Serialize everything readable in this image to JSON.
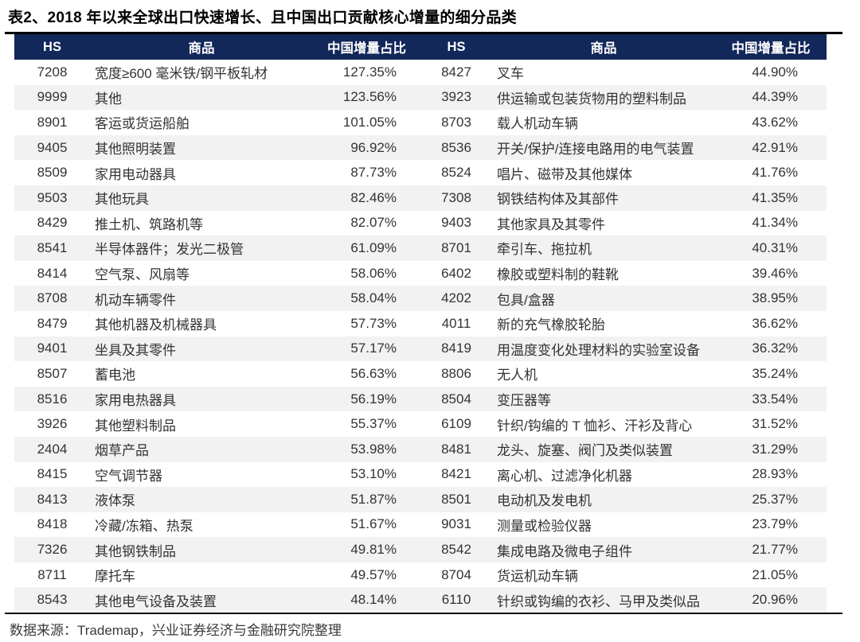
{
  "title": "表2、2018 年以来全球出口快速增长、且中国出口贡献核心增量的细分品类",
  "colors": {
    "header_bg": "#12275A",
    "header_text": "#FFFFFF",
    "stripe": "#F2F2F2",
    "rule": "#000000",
    "body_text": "#333333"
  },
  "table": {
    "headers": {
      "hs": "HS",
      "product": "商品",
      "share": "中国增量占比"
    },
    "rows": [
      {
        "hs_l": "7208",
        "product_l": "宽度≥600 毫米铁/钢平板轧材",
        "share_l": "127.35%",
        "hs_r": "8427",
        "product_r": "叉车",
        "share_r": "44.90%"
      },
      {
        "hs_l": "9999",
        "product_l": "其他",
        "share_l": "123.56%",
        "hs_r": "3923",
        "product_r": "供运输或包装货物用的塑料制品",
        "share_r": "44.39%"
      },
      {
        "hs_l": "8901",
        "product_l": "客运或货运船舶",
        "share_l": "101.05%",
        "hs_r": "8703",
        "product_r": "载人机动车辆",
        "share_r": "43.62%"
      },
      {
        "hs_l": "9405",
        "product_l": "其他照明装置",
        "share_l": "96.92%",
        "hs_r": "8536",
        "product_r": "开关/保护/连接电路用的电气装置",
        "share_r": "42.91%"
      },
      {
        "hs_l": "8509",
        "product_l": "家用电动器具",
        "share_l": "87.73%",
        "hs_r": "8524",
        "product_r": "唱片、磁带及其他媒体",
        "share_r": "41.76%"
      },
      {
        "hs_l": "9503",
        "product_l": "其他玩具",
        "share_l": "82.46%",
        "hs_r": "7308",
        "product_r": "钢铁结构体及其部件",
        "share_r": "41.35%"
      },
      {
        "hs_l": "8429",
        "product_l": "推土机、筑路机等",
        "share_l": "82.07%",
        "hs_r": "9403",
        "product_r": "其他家具及其零件",
        "share_r": "41.34%"
      },
      {
        "hs_l": "8541",
        "product_l": "半导体器件；发光二极管",
        "share_l": "61.09%",
        "hs_r": "8701",
        "product_r": "牵引车、拖拉机",
        "share_r": "40.31%"
      },
      {
        "hs_l": "8414",
        "product_l": "空气泵、风扇等",
        "share_l": "58.06%",
        "hs_r": "6402",
        "product_r": "橡胶或塑料制的鞋靴",
        "share_r": "39.46%"
      },
      {
        "hs_l": "8708",
        "product_l": "机动车辆零件",
        "share_l": "58.04%",
        "hs_r": "4202",
        "product_r": "包具/盒器",
        "share_r": "38.95%"
      },
      {
        "hs_l": "8479",
        "product_l": "其他机器及机械器具",
        "share_l": "57.73%",
        "hs_r": "4011",
        "product_r": "新的充气橡胶轮胎",
        "share_r": "36.62%"
      },
      {
        "hs_l": "9401",
        "product_l": "坐具及其零件",
        "share_l": "57.17%",
        "hs_r": "8419",
        "product_r": "用温度变化处理材料的实验室设备",
        "share_r": "36.32%"
      },
      {
        "hs_l": "8507",
        "product_l": "蓄电池",
        "share_l": "56.63%",
        "hs_r": "8806",
        "product_r": "无人机",
        "share_r": "35.24%"
      },
      {
        "hs_l": "8516",
        "product_l": "家用电热器具",
        "share_l": "56.19%",
        "hs_r": "8504",
        "product_r": "变压器等",
        "share_r": "33.54%"
      },
      {
        "hs_l": "3926",
        "product_l": "其他塑料制品",
        "share_l": "55.37%",
        "hs_r": "6109",
        "product_r": "针织/钩编的 T 恤衫、汗衫及背心",
        "share_r": "31.52%"
      },
      {
        "hs_l": "2404",
        "product_l": "烟草产品",
        "share_l": "53.98%",
        "hs_r": "8481",
        "product_r": "龙头、旋塞、阀门及类似装置",
        "share_r": "31.29%"
      },
      {
        "hs_l": "8415",
        "product_l": "空气调节器",
        "share_l": "53.10%",
        "hs_r": "8421",
        "product_r": "离心机、过滤净化机器",
        "share_r": "28.93%"
      },
      {
        "hs_l": "8413",
        "product_l": "液体泵",
        "share_l": "51.87%",
        "hs_r": "8501",
        "product_r": "电动机及发电机",
        "share_r": "25.37%"
      },
      {
        "hs_l": "8418",
        "product_l": "冷藏/冻箱、热泵",
        "share_l": "51.67%",
        "hs_r": "9031",
        "product_r": "测量或检验仪器",
        "share_r": "23.79%"
      },
      {
        "hs_l": "7326",
        "product_l": "其他钢铁制品",
        "share_l": "49.81%",
        "hs_r": "8542",
        "product_r": "集成电路及微电子组件",
        "share_r": "21.77%"
      },
      {
        "hs_l": "8711",
        "product_l": "摩托车",
        "share_l": "49.57%",
        "hs_r": "8704",
        "product_r": "货运机动车辆",
        "share_r": "21.05%"
      },
      {
        "hs_l": "8543",
        "product_l": "其他电气设备及装置",
        "share_l": "48.14%",
        "hs_r": "6110",
        "product_r": "针织或钩编的衣衫、马甲及类似品",
        "share_r": "20.96%"
      }
    ]
  },
  "footer": {
    "source": "数据来源：Trademap，兴业证券经济与金融研究院整理"
  }
}
